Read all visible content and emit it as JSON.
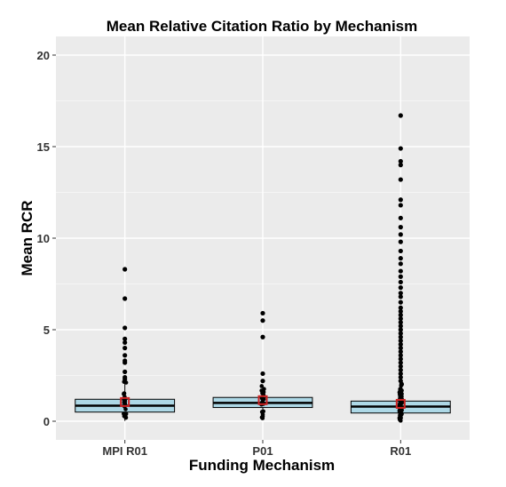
{
  "chart_data": {
    "type": "box",
    "title": "Mean Relative Citation Ratio by Mechanism",
    "xlabel": "Funding Mechanism",
    "ylabel": "Mean RCR",
    "ylim": [
      -0.9,
      21
    ],
    "yticks": [
      0,
      5,
      10,
      15,
      20
    ],
    "categories": [
      "MPI R01",
      "P01",
      "R01"
    ],
    "grid": true,
    "colors": {
      "panel": "#ebebeb",
      "grid": "#ffffff",
      "box_fill": "#add8e6",
      "box_edge": "#000000",
      "mean_marker": "#cc2222",
      "outlier": "#000000"
    },
    "boxes": [
      {
        "category": "MPI R01",
        "q1": 0.5,
        "median": 0.85,
        "q3": 1.2,
        "mean": 1.05,
        "whisker_low": 0.02,
        "whisker_high": 2.25,
        "outliers": [
          8.3,
          6.7,
          5.1,
          4.5,
          4.3,
          4.0,
          3.6,
          3.3,
          3.2,
          2.7,
          2.4,
          2.3
        ]
      },
      {
        "category": "P01",
        "q1": 0.75,
        "median": 1.0,
        "q3": 1.3,
        "mean": 1.15,
        "whisker_low": 0.15,
        "whisker_high": 2.0,
        "outliers": [
          5.9,
          5.5,
          4.6,
          2.6,
          2.2
        ]
      },
      {
        "category": "R01",
        "q1": 0.45,
        "median": 0.8,
        "q3": 1.1,
        "mean": 0.95,
        "whisker_low": 0.0,
        "whisker_high": 2.1,
        "outliers": [
          16.7,
          14.9,
          14.2,
          14.0,
          13.2,
          12.1,
          11.8,
          11.1,
          10.6,
          10.2,
          9.8,
          9.3,
          8.9,
          8.6,
          8.2,
          7.9,
          7.6,
          7.3,
          7.0,
          6.8,
          6.5,
          6.2,
          6.0,
          5.8,
          5.6,
          5.4,
          5.2,
          5.0,
          4.8,
          4.6,
          4.4,
          4.2,
          4.0,
          3.8,
          3.6,
          3.4,
          3.2,
          3.0,
          2.8,
          2.6,
          2.4,
          2.2
        ]
      }
    ]
  }
}
